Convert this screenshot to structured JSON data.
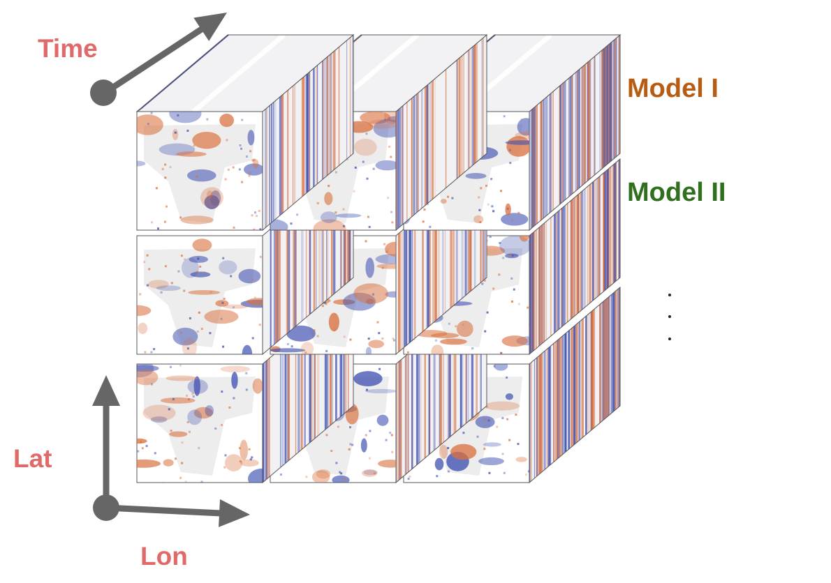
{
  "axes": {
    "time_label": "Time",
    "lat_label": "Lat",
    "lon_label": "Lon"
  },
  "models": [
    {
      "label": "Model I",
      "color": "#b75c12"
    },
    {
      "label": "Model II",
      "color": "#2f6f1e"
    }
  ],
  "more_models_indicator": "vertical-ellipsis",
  "colors": {
    "axis_label": "#e06a6a",
    "arrow": "#666666",
    "anomaly_warm": "#d9713f",
    "anomaly_cool": "#3f50b0",
    "neutral_land": "#ebebeb",
    "box_edge": "#555555"
  },
  "grid": {
    "rows": 3,
    "columns": 3,
    "layers": 3
  }
}
